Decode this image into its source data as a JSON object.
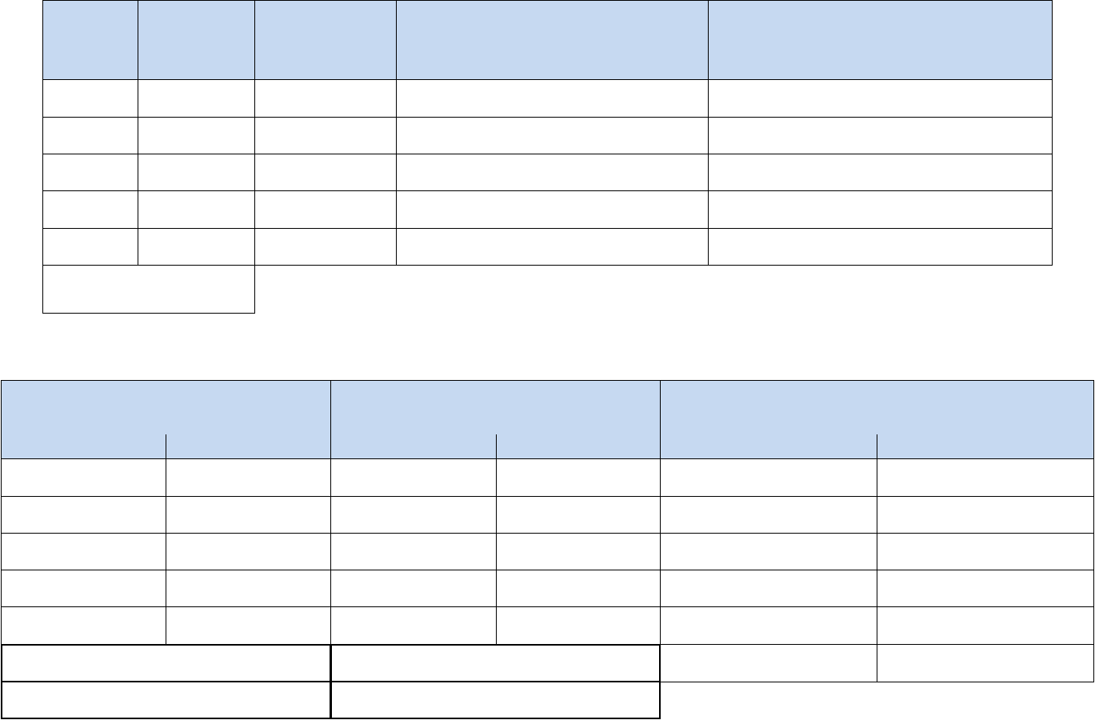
{
  "colors": {
    "header_fill": "#c6d9f1",
    "border": "#000000"
  },
  "tables": [
    {
      "name": "table-1",
      "header_cells": [
        "",
        "",
        "",
        "",
        ""
      ],
      "rows": [
        [
          "",
          "",
          "",
          "",
          ""
        ],
        [
          "",
          "",
          "",
          "",
          ""
        ],
        [
          "",
          "",
          "",
          "",
          ""
        ],
        [
          "",
          "",
          "",
          "",
          ""
        ],
        [
          "",
          "",
          "",
          "",
          ""
        ]
      ],
      "footer": [
        ""
      ]
    },
    {
      "name": "table-2",
      "header_groups": [
        "",
        "",
        ""
      ],
      "rows": [
        [
          "",
          "",
          "",
          "",
          "",
          ""
        ],
        [
          "",
          "",
          "",
          "",
          "",
          ""
        ],
        [
          "",
          "",
          "",
          "",
          "",
          ""
        ],
        [
          "",
          "",
          "",
          "",
          "",
          ""
        ],
        [
          "",
          "",
          "",
          "",
          "",
          ""
        ]
      ],
      "footer_rows": [
        [
          "",
          "",
          "",
          ""
        ],
        [
          "",
          ""
        ]
      ]
    }
  ]
}
